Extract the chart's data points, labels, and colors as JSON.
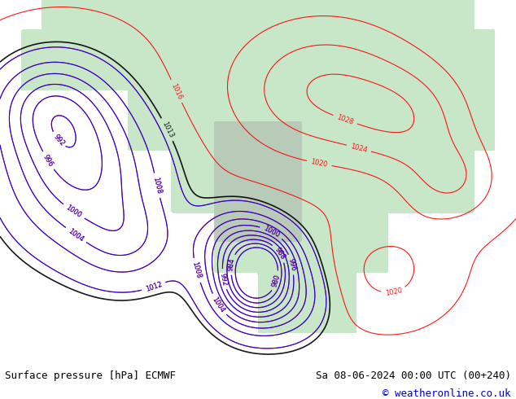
{
  "title_left": "Surface pressure [hPa] ECMWF",
  "title_right": "Sa 08-06-2024 00:00 UTC (00+240)",
  "copyright": "© weatheronline.co.uk",
  "bg_color": "#ffffff",
  "map_bg": "#e8f4e8",
  "land_color": "#c8e6c8",
  "ocean_color": "#d0e8f0",
  "contour_color_red": "#ff0000",
  "contour_color_blue": "#0000ff",
  "contour_color_black": "#000000",
  "font_size_bottom": 9,
  "font_size_copyright": 9,
  "bottom_bar_color": "#ffffff"
}
